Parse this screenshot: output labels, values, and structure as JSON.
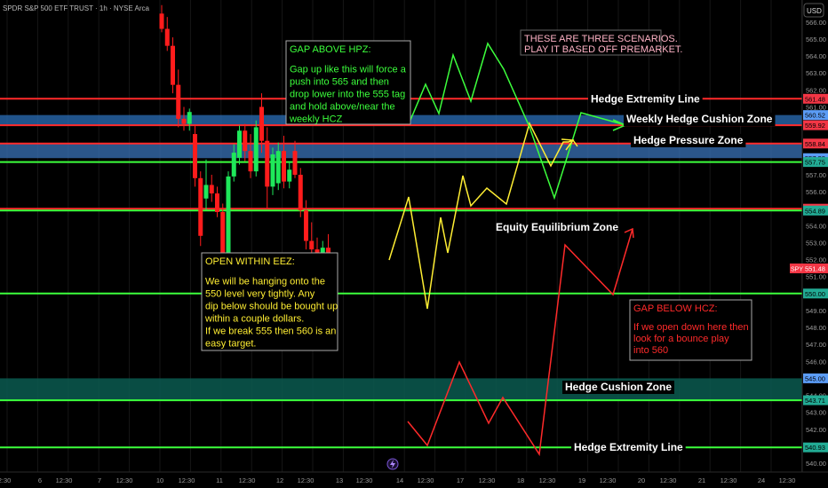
{
  "chart_data": {
    "type": "candlestick",
    "symbol_header": "SPDR S&P 500 ETF TRUST · 1h · NYSE Arca",
    "currency": "USD",
    "current_price_tag": {
      "symbol": "SPY",
      "price": "551.48"
    },
    "ylim": [
      539.5,
      566.0
    ],
    "y_ticks": [
      "540.00",
      "541.00",
      "542.00",
      "543.00",
      "544.00",
      "545.00",
      "546.00",
      "547.00",
      "548.00",
      "549.00",
      "550.00",
      "551.00",
      "552.00",
      "553.00",
      "554.00",
      "555.00",
      "556.00",
      "557.00",
      "558.00",
      "559.00",
      "560.00",
      "561.00",
      "562.00",
      "563.00",
      "564.00",
      "565.00",
      "566.00"
    ],
    "x_ticks": [
      "2:30",
      "6",
      "12:30",
      "7",
      "12:30",
      "10",
      "12:30",
      "11",
      "12:30",
      "12",
      "12:30",
      "13",
      "12:30",
      "14",
      "12:30",
      "17",
      "12:30",
      "18",
      "12:30",
      "19",
      "12:30",
      "20",
      "12:30",
      "21",
      "12:30",
      "24",
      "12:30"
    ],
    "price_badges": [
      {
        "value": "561.48",
        "color": "#f23645"
      },
      {
        "value": "560.52",
        "color": "#5b9cf6"
      },
      {
        "value": "559.92",
        "color": "#f23645"
      },
      {
        "value": "558.84",
        "color": "#f23645"
      },
      {
        "value": "557.98",
        "color": "#5b9cf6"
      },
      {
        "value": "557.75",
        "color": "#22ab94"
      },
      {
        "value": "555.00",
        "color": "#f23645"
      },
      {
        "value": "554.89",
        "color": "#22ab94"
      },
      {
        "value": "550.00",
        "color": "#22ab94"
      },
      {
        "value": "545.00",
        "color": "#5b9cf6"
      },
      {
        "value": "543.71",
        "color": "#22ab94"
      },
      {
        "value": "540.93",
        "color": "#22ab94"
      }
    ],
    "levels": [
      {
        "price": 561.48,
        "color": "#ff2a2a",
        "label": "Hedge Extremity Line"
      },
      {
        "price": 559.92,
        "color": "#ff2a2a",
        "label": ""
      },
      {
        "price": 558.84,
        "color": "#ff2a2a",
        "label": ""
      },
      {
        "price": 557.75,
        "color": "#3cff3c",
        "label": ""
      },
      {
        "price": 555.0,
        "color": "#ff2a2a",
        "label": ""
      },
      {
        "price": 554.89,
        "color": "#3cff3c",
        "label": ""
      },
      {
        "price": 550.0,
        "color": "#3cff3c",
        "label": ""
      },
      {
        "price": 543.71,
        "color": "#3cff3c",
        "label": ""
      },
      {
        "price": 540.93,
        "color": "#3cff3c",
        "label": "Hedge Extremity Line"
      }
    ],
    "zones": [
      {
        "top": 560.52,
        "bottom": 559.92,
        "color": "#2b6fb8",
        "opacity": 0.75,
        "label": "Weekly Hedge Cushion Zone"
      },
      {
        "top": 558.84,
        "bottom": 557.98,
        "color": "#3a73b8",
        "opacity": 0.75,
        "label": "Hedge Pressure Zone"
      },
      {
        "top": 545.0,
        "bottom": 543.71,
        "color": "#0a5a50",
        "opacity": 0.85,
        "label": "Hedge Cushion Zone"
      }
    ],
    "candles": [
      {
        "o": 566.5,
        "h": 567.0,
        "l": 565.4,
        "c": 565.6
      },
      {
        "o": 565.6,
        "h": 566.3,
        "l": 564.3,
        "c": 564.6
      },
      {
        "o": 564.6,
        "h": 565.1,
        "l": 561.8,
        "c": 562.3
      },
      {
        "o": 562.3,
        "h": 563.2,
        "l": 559.8,
        "c": 560.3
      },
      {
        "o": 560.3,
        "h": 561.0,
        "l": 559.6,
        "c": 560.0
      },
      {
        "o": 560.0,
        "h": 560.9,
        "l": 559.6,
        "c": 560.7
      },
      {
        "o": 559.4,
        "h": 559.9,
        "l": 556.3,
        "c": 556.8
      },
      {
        "o": 556.8,
        "h": 557.2,
        "l": 552.8,
        "c": 553.4
      },
      {
        "o": 555.6,
        "h": 557.9,
        "l": 554.9,
        "c": 556.4
      },
      {
        "o": 556.4,
        "h": 557.0,
        "l": 555.4,
        "c": 555.9
      },
      {
        "o": 555.9,
        "h": 556.3,
        "l": 554.5,
        "c": 554.8
      },
      {
        "o": 554.8,
        "h": 555.3,
        "l": 551.6,
        "c": 551.9
      },
      {
        "o": 551.9,
        "h": 557.2,
        "l": 551.5,
        "c": 556.9
      },
      {
        "o": 556.9,
        "h": 558.8,
        "l": 556.6,
        "c": 558.3
      },
      {
        "o": 558.0,
        "h": 559.9,
        "l": 557.6,
        "c": 559.6
      },
      {
        "o": 559.6,
        "h": 560.0,
        "l": 557.8,
        "c": 558.4
      },
      {
        "o": 558.4,
        "h": 559.4,
        "l": 556.8,
        "c": 557.2
      },
      {
        "o": 557.2,
        "h": 560.2,
        "l": 556.9,
        "c": 559.8
      },
      {
        "o": 561.0,
        "h": 561.8,
        "l": 558.3,
        "c": 559.0
      },
      {
        "o": 559.0,
        "h": 559.8,
        "l": 555.0,
        "c": 556.3
      },
      {
        "o": 556.3,
        "h": 558.6,
        "l": 555.8,
        "c": 558.2
      },
      {
        "o": 556.5,
        "h": 558.9,
        "l": 556.1,
        "c": 558.4
      },
      {
        "o": 558.4,
        "h": 559.3,
        "l": 556.2,
        "c": 556.6
      },
      {
        "o": 556.6,
        "h": 557.8,
        "l": 556.2,
        "c": 557.3
      },
      {
        "o": 558.4,
        "h": 559.0,
        "l": 556.8,
        "c": 557.0
      },
      {
        "o": 557.0,
        "h": 557.4,
        "l": 554.5,
        "c": 554.9
      },
      {
        "o": 554.9,
        "h": 555.5,
        "l": 552.6,
        "c": 553.1
      },
      {
        "o": 553.1,
        "h": 554.2,
        "l": 552.2,
        "c": 552.6
      },
      {
        "o": 552.6,
        "h": 553.3,
        "l": 550.8,
        "c": 551.2
      },
      {
        "o": 551.2,
        "h": 553.1,
        "l": 550.4,
        "c": 552.7
      },
      {
        "o": 552.7,
        "h": 553.5,
        "l": 550.9,
        "c": 551.4
      }
    ],
    "projections": [
      {
        "name": "",
        "color": "#ffee33",
        "points": [
          [
            438,
            293
          ],
          [
            460,
            222
          ],
          [
            481,
            348
          ],
          [
            496,
            245
          ],
          [
            504,
            285
          ],
          [
            521,
            198
          ],
          [
            530,
            232
          ],
          [
            548,
            212
          ],
          [
            570,
            230
          ],
          [
            596,
            139
          ],
          [
            620,
            187
          ],
          [
            634,
            160
          ],
          [
            640,
            160
          ],
          [
            645,
            158
          ],
          [
            650,
            165
          ]
        ]
      },
      {
        "name": "",
        "color": "#3cff3c",
        "points": [
          [
            460,
            140
          ],
          [
            479,
            95
          ],
          [
            494,
            128
          ],
          [
            510,
            62
          ],
          [
            530,
            114
          ],
          [
            549,
            49
          ],
          [
            567,
            78
          ],
          [
            596,
            143
          ],
          [
            624,
            223
          ],
          [
            654,
            127
          ],
          [
            704,
            141
          ]
        ]
      },
      {
        "name": "",
        "color": "#ff2a2a",
        "points": [
          [
            459,
            475
          ],
          [
            481,
            502
          ],
          [
            517,
            408
          ],
          [
            550,
            477
          ],
          [
            566,
            448
          ],
          [
            607,
            512
          ],
          [
            636,
            276
          ],
          [
            690,
            332
          ],
          [
            712,
            258
          ]
        ]
      }
    ],
    "annotations": [
      {
        "title": "GAP ABOVE HPZ:",
        "body": [
          "Gap up like this will force a",
          "push into 565 and then",
          "drop lower into the 555 tag",
          "and hold above/near the",
          "weekly HCZ"
        ],
        "color": "#3cff3c"
      },
      {
        "title": "OPEN WITHIN EEZ:",
        "body": [
          "We will be hanging onto the",
          "550 level very tightly. Any",
          "dip below should be bought up",
          "within a couple dollars.",
          "If we break 555 then 560 is an",
          "easy target."
        ],
        "color": "#ffee33"
      },
      {
        "title": "GAP BELOW HCZ:",
        "body": [
          "If we open down here then",
          "look for a bounce play",
          "into 560"
        ],
        "color": "#ff2a2a"
      },
      {
        "title": "",
        "body": [
          "THESE ARE THREE SCENARIOS.",
          "PLAY IT BASED OFF PREMARKET."
        ],
        "color": "#ffb3c6"
      }
    ],
    "floating_labels": [
      "Equity Equilibrium Zone"
    ]
  }
}
